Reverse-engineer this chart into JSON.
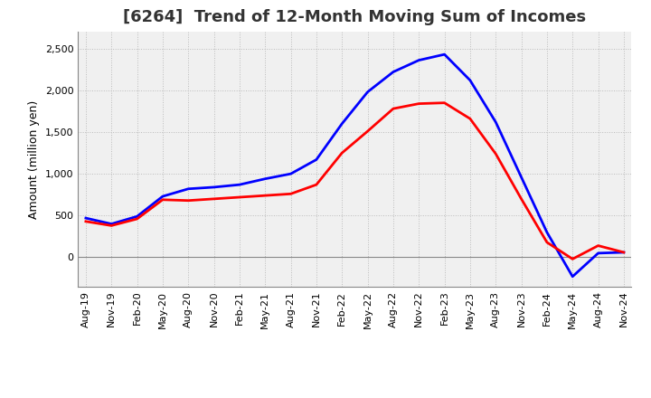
{
  "title": "[6264]  Trend of 12-Month Moving Sum of Incomes",
  "ylabel": "Amount (million yen)",
  "x_labels": [
    "Aug-19",
    "Nov-19",
    "Feb-20",
    "May-20",
    "Aug-20",
    "Nov-20",
    "Feb-21",
    "May-21",
    "Aug-21",
    "Nov-21",
    "Feb-22",
    "May-22",
    "Aug-22",
    "Nov-22",
    "Feb-23",
    "May-23",
    "Aug-23",
    "Nov-23",
    "Feb-24",
    "May-24",
    "Aug-24",
    "Nov-24"
  ],
  "ordinary_income": [
    470,
    400,
    490,
    730,
    820,
    840,
    870,
    940,
    1000,
    1170,
    1600,
    1980,
    2220,
    2360,
    2430,
    2120,
    1620,
    960,
    300,
    -230,
    50,
    60
  ],
  "net_income": [
    430,
    380,
    460,
    690,
    680,
    700,
    720,
    740,
    760,
    870,
    1250,
    1510,
    1780,
    1840,
    1850,
    1660,
    1240,
    700,
    180,
    -20,
    140,
    60
  ],
  "ordinary_income_color": "#0000ff",
  "net_income_color": "#ff0000",
  "line_width": 2.0,
  "ylim": [
    -350,
    2700
  ],
  "yticks": [
    0,
    500,
    1000,
    1500,
    2000,
    2500
  ],
  "ytick_labels": [
    "0",
    "500",
    "1,000",
    "1,500",
    "2,000",
    "2,500"
  ],
  "background_color": "#ffffff",
  "plot_bg_color": "#f0f0f0",
  "grid_color": "#bbbbbb",
  "title_fontsize": 13,
  "axis_label_fontsize": 9,
  "tick_fontsize": 8,
  "legend_fontsize": 9
}
